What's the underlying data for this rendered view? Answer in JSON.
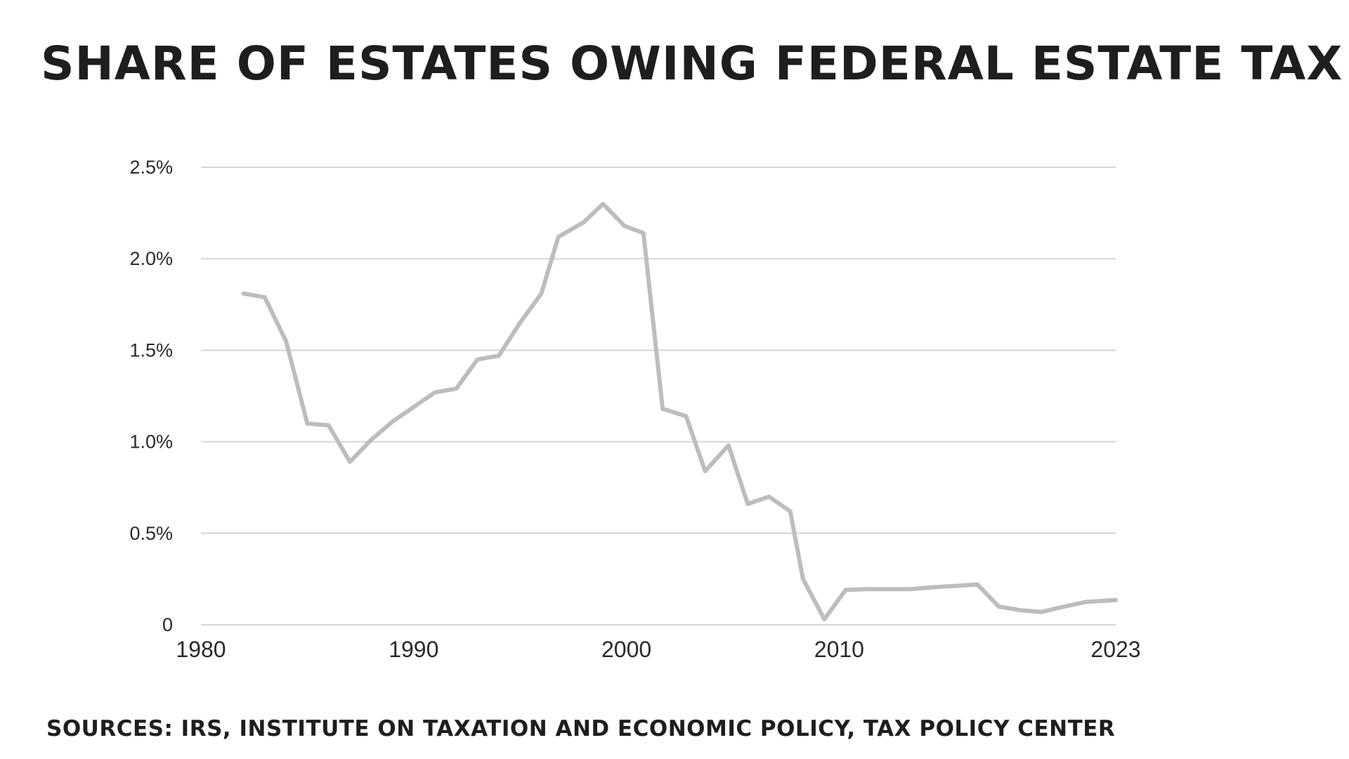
{
  "chart_data": {
    "type": "line",
    "title": "SHARE OF ESTATES OWING FEDERAL ESTATE TAX",
    "source": "SOURCES: IRS, INSTITUTE ON TAXATION AND ECONOMIC POLICY, TAX POLICY CENTER",
    "xlabel": "",
    "ylabel": "",
    "xlim": [
      1980,
      2023
    ],
    "ylim": [
      0,
      2.5
    ],
    "grid": true,
    "y_ticks": [
      {
        "value": 0,
        "label": "0"
      },
      {
        "value": 0.5,
        "label": "0.5%"
      },
      {
        "value": 1.0,
        "label": "1.0%"
      },
      {
        "value": 1.5,
        "label": "1.5%"
      },
      {
        "value": 2.0,
        "label": "2.0%"
      },
      {
        "value": 2.5,
        "label": "2.5%"
      }
    ],
    "x_ticks": [
      {
        "value": 1980,
        "label": "1980"
      },
      {
        "value": 1990,
        "label": "1990"
      },
      {
        "value": 2000,
        "label": "2000"
      },
      {
        "value": 2010,
        "label": "2010"
      },
      {
        "value": 2023,
        "label": "2023"
      }
    ],
    "line_color": "#bdbdbd",
    "grid_color": "#d5d5d5",
    "series": [
      {
        "values": [
          {
            "x": 1982,
            "y": 1.81
          },
          {
            "x": 1983,
            "y": 1.79
          },
          {
            "x": 1984,
            "y": 1.55
          },
          {
            "x": 1985,
            "y": 1.1
          },
          {
            "x": 1986,
            "y": 1.09
          },
          {
            "x": 1987,
            "y": 0.89
          },
          {
            "x": 1988,
            "y": 1.01
          },
          {
            "x": 1989,
            "y": 1.11
          },
          {
            "x": 1990,
            "y": 1.19
          },
          {
            "x": 1991,
            "y": 1.27
          },
          {
            "x": 1992,
            "y": 1.29
          },
          {
            "x": 1993,
            "y": 1.45
          },
          {
            "x": 1994,
            "y": 1.47
          },
          {
            "x": 1995,
            "y": 1.65
          },
          {
            "x": 1996,
            "y": 1.81
          },
          {
            "x": 1996.8,
            "y": 2.12
          },
          {
            "x": 1998,
            "y": 2.2
          },
          {
            "x": 1998.9,
            "y": 2.3
          },
          {
            "x": 1999.9,
            "y": 2.18
          },
          {
            "x": 2000.8,
            "y": 2.14
          },
          {
            "x": 2001.7,
            "y": 1.18
          },
          {
            "x": 2002.8,
            "y": 1.14
          },
          {
            "x": 2003.7,
            "y": 0.84
          },
          {
            "x": 2004.8,
            "y": 0.98
          },
          {
            "x": 2005.7,
            "y": 0.66
          },
          {
            "x": 2006.7,
            "y": 0.7
          },
          {
            "x": 2007.7,
            "y": 0.62
          },
          {
            "x": 2008.3,
            "y": 0.25
          },
          {
            "x": 2009.3,
            "y": 0.03
          },
          {
            "x": 2010.3,
            "y": 0.19
          },
          {
            "x": 2011.3,
            "y": 0.195
          },
          {
            "x": 2013.4,
            "y": 0.195
          },
          {
            "x": 2014.4,
            "y": 0.205
          },
          {
            "x": 2016.5,
            "y": 0.22
          },
          {
            "x": 2017.5,
            "y": 0.1
          },
          {
            "x": 2018.5,
            "y": 0.08
          },
          {
            "x": 2019.5,
            "y": 0.07
          },
          {
            "x": 2020.6,
            "y": 0.1
          },
          {
            "x": 2021.6,
            "y": 0.125
          },
          {
            "x": 2023,
            "y": 0.135
          }
        ]
      }
    ]
  }
}
